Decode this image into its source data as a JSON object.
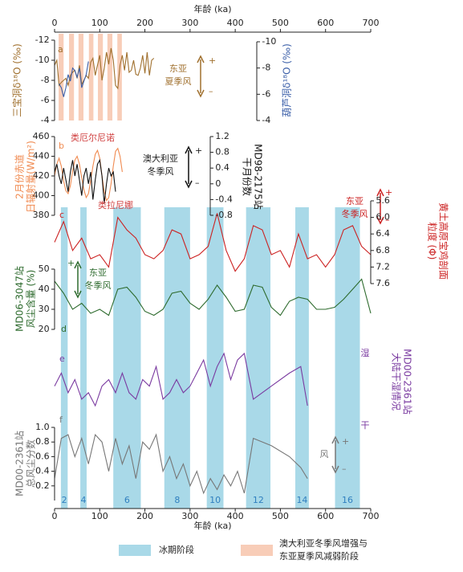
{
  "chart_data": {
    "type": "line",
    "xlabel": "年龄 (ka)",
    "xlim": [
      0,
      700
    ],
    "xticks": [
      0,
      100,
      200,
      300,
      400,
      500,
      600,
      700
    ],
    "bands": {
      "glacial": {
        "name": "冰期阶段",
        "color": "#a9d9e8",
        "ranges": [
          [
            14,
            29
          ],
          [
            57,
            71
          ],
          [
            130,
            191
          ],
          [
            243,
            300
          ],
          [
            337,
            374
          ],
          [
            424,
            478
          ],
          [
            533,
            563
          ],
          [
            621,
            676
          ]
        ],
        "labels": [
          "2",
          "4",
          "6",
          "8",
          "10",
          "12",
          "14",
          "16"
        ]
      },
      "weak": {
        "name": [
          "澳大利亚冬季风增强与",
          "东亚夏季风减弱阶段"
        ],
        "color": "#f8cdb8",
        "ranges": [
          [
            9,
            20
          ],
          [
            32,
            43
          ],
          [
            53,
            64
          ],
          [
            76,
            86
          ],
          [
            96,
            107
          ],
          [
            117,
            128
          ],
          [
            139,
            149
          ]
        ]
      }
    },
    "annotations": [
      "东亚",
      "夏季风",
      "+",
      "–",
      "类厄尔尼诺",
      "类拉尼娜",
      "澳大利亚",
      "冬季风",
      "+",
      "–",
      "东亚",
      "冬季风",
      "+",
      "–",
      "东亚",
      "冬季风",
      "+",
      "湿",
      "干",
      "风",
      "+",
      "–"
    ],
    "series": [
      {
        "letter": "a",
        "label": [
          "三宝洞δ¹⁸O (‰)"
        ],
        "color": "#a0702e",
        "inverted": true,
        "ylim": [
          -12,
          -4
        ],
        "yticks": [
          -12,
          -10,
          -8,
          -6,
          -4
        ],
        "x": [
          0,
          5,
          10,
          15,
          20,
          25,
          30,
          35,
          40,
          45,
          50,
          55,
          60,
          65,
          70,
          75,
          80,
          85,
          90,
          95,
          100,
          105,
          110,
          115,
          120,
          125,
          130,
          135,
          140,
          145,
          150,
          155,
          160,
          165,
          170,
          175,
          180,
          185,
          190,
          195,
          200,
          205,
          210,
          215,
          220
        ],
        "values": [
          -9.5,
          -10,
          -7.5,
          -7.8,
          -8,
          -8.2,
          -7.5,
          -8.5,
          -8.8,
          -9,
          -8.2,
          -9.5,
          -7.6,
          -8,
          -8.5,
          -8.2,
          -9.8,
          -10.2,
          -8.5,
          -9.5,
          -10.5,
          -8,
          -9.2,
          -10.8,
          -9.6,
          -11.2,
          -10,
          -7.5,
          -7.2,
          -9.5,
          -10.5,
          -9,
          -10.8,
          -8.8,
          -9,
          -10,
          -8.6,
          -8.5,
          -9.2,
          -10.5,
          -8.7,
          -10.8,
          -8.5,
          -10,
          -10.2
        ]
      },
      {
        "label": [
          "葫芦洞δ¹⁸O (‰)"
        ],
        "color": "#3a5ea8",
        "inverted": true,
        "ylim": [
          -10,
          -4
        ],
        "yticks": [
          -10,
          -8,
          -6,
          -4
        ],
        "x": [
          10,
          15,
          20,
          25,
          30,
          35,
          40,
          45,
          50,
          55,
          60,
          65,
          70,
          75
        ],
        "values": [
          -6.8,
          -6.5,
          -5.8,
          -6.5,
          -7.5,
          -7,
          -8,
          -7.8,
          -7.3,
          -8,
          -6.5,
          -7,
          -7.5,
          -8.5
        ]
      },
      {
        "letter": "b",
        "label": [
          "2月份赤道",
          "日辐射量(W/m²)"
        ],
        "color": "#f08a50",
        "inverted": false,
        "ylim": [
          380,
          460
        ],
        "yticks": [
          380,
          400,
          420,
          440,
          460
        ],
        "x": [
          0,
          5,
          10,
          15,
          20,
          25,
          30,
          35,
          40,
          45,
          50,
          55,
          60,
          65,
          70,
          75,
          80,
          85,
          90,
          95,
          100,
          105,
          110,
          115,
          120,
          125,
          130,
          135,
          140,
          145,
          150
        ],
        "values": [
          420,
          432,
          438,
          430,
          415,
          405,
          402,
          410,
          425,
          436,
          440,
          432,
          418,
          406,
          398,
          402,
          415,
          430,
          442,
          446,
          438,
          420,
          404,
          395,
          398,
          412,
          430,
          445,
          448,
          440,
          424
        ]
      },
      {
        "label": [
          "MD98-2175站",
          "干月份数"
        ],
        "color": "#111111",
        "inverted": false,
        "ylim": [
          -0.8,
          1.2
        ],
        "yticks": [
          -0.8,
          -0.4,
          0,
          0.4,
          0.8,
          1.2
        ],
        "x": [
          0,
          5,
          10,
          15,
          20,
          25,
          30,
          35,
          40,
          45,
          50,
          55,
          60,
          65,
          70,
          75,
          80,
          85,
          90,
          95,
          100,
          105,
          110,
          115,
          120,
          125,
          130,
          135
        ],
        "values": [
          0.3,
          0.5,
          0.2,
          0,
          0.4,
          0.1,
          -0.2,
          0.3,
          0.6,
          0.2,
          0.5,
          0.1,
          -0.3,
          0.2,
          0.4,
          0,
          0.3,
          -0.4,
          0.1,
          0.5,
          0.6,
          0.2,
          -0.5,
          0,
          0.4,
          0.2,
          0.3,
          -0.2
        ]
      },
      {
        "letter": "c",
        "label": [
          "黄土高原宝鸡剖面",
          "粒度 (Φ)"
        ],
        "color": "#cc2222",
        "inverted": true,
        "ylim": [
          5.6,
          7.6
        ],
        "yticks": [
          5.6,
          {
            "value": 6,
            "label": "6.0"
          },
          6.4,
          6.8,
          7.2,
          7.6
        ],
        "x": [
          0,
          20,
          40,
          60,
          80,
          100,
          120,
          140,
          160,
          180,
          200,
          220,
          240,
          260,
          280,
          300,
          320,
          340,
          360,
          380,
          400,
          420,
          440,
          460,
          480,
          500,
          520,
          540,
          560,
          580,
          600,
          620,
          640,
          660,
          680,
          700
        ],
        "values": [
          6.6,
          6.1,
          6.8,
          6.5,
          7.0,
          6.9,
          7.2,
          6.0,
          6.3,
          6.5,
          6.9,
          7.0,
          6.8,
          6.3,
          6.4,
          7.0,
          6.9,
          6.7,
          5.9,
          6.8,
          7.3,
          7.0,
          6.2,
          6.3,
          6.9,
          6.8,
          7.2,
          6.4,
          7.0,
          6.9,
          7.2,
          6.9,
          6.3,
          6.2,
          6.7,
          6.9
        ]
      },
      {
        "letter": "d",
        "label": [
          "MD06-3047站",
          "风尘含量 (%)"
        ],
        "color": "#2e6b2e",
        "inverted": false,
        "ylim": [
          20,
          50
        ],
        "yticks": [
          20,
          30,
          40,
          50
        ],
        "x": [
          0,
          20,
          40,
          60,
          80,
          100,
          120,
          140,
          160,
          180,
          200,
          220,
          240,
          260,
          280,
          300,
          320,
          340,
          360,
          380,
          400,
          420,
          440,
          460,
          480,
          500,
          520,
          540,
          560,
          580,
          600,
          620,
          640,
          660,
          680,
          700
        ],
        "values": [
          44,
          38,
          30,
          33,
          28,
          30,
          27,
          40,
          41,
          36,
          29,
          27,
          30,
          38,
          39,
          33,
          30,
          35,
          42,
          36,
          29,
          30,
          42,
          41,
          31,
          27,
          34,
          36,
          35,
          30,
          30,
          31,
          35,
          40,
          45,
          28
        ]
      },
      {
        "letter": "e",
        "label": [
          "MD00-2361站",
          "大陆干湿情况"
        ],
        "color": "#7a3aa0",
        "inverted": false,
        "x": [
          0,
          15,
          30,
          45,
          60,
          75,
          90,
          105,
          120,
          135,
          150,
          165,
          180,
          195,
          210,
          225,
          240,
          255,
          270,
          285,
          300,
          315,
          330,
          345,
          360,
          375,
          390,
          405,
          420,
          440,
          480,
          520,
          545,
          560
        ],
        "values": [
          0.4,
          0.6,
          0.3,
          0.5,
          0.2,
          0.3,
          0.1,
          0.4,
          0.5,
          0.3,
          0.6,
          0.3,
          0.2,
          0.5,
          0.4,
          0.7,
          0.2,
          0.3,
          0.5,
          0.3,
          0.4,
          0.6,
          0.8,
          0.4,
          0.7,
          0.9,
          0.5,
          0.8,
          0.9,
          0.2,
          0.4,
          0.6,
          0.7,
          0.1
        ]
      },
      {
        "letter": "f",
        "label": [
          "MD00-2361站",
          "总风尘分数"
        ],
        "color": "#777777",
        "inverted": false,
        "ylim": [
          0,
          1
        ],
        "yticks": [
          0.2,
          0.4,
          0.6,
          0.8,
          {
            "value": 1,
            "label": "1.0"
          }
        ],
        "x": [
          0,
          15,
          30,
          45,
          60,
          75,
          90,
          105,
          120,
          135,
          150,
          165,
          180,
          195,
          210,
          225,
          240,
          255,
          270,
          285,
          300,
          315,
          330,
          345,
          360,
          375,
          390,
          405,
          420,
          440,
          480,
          520,
          545,
          560
        ],
        "values": [
          0.3,
          0.85,
          0.9,
          0.6,
          0.85,
          0.5,
          0.9,
          0.8,
          0.4,
          0.85,
          0.5,
          0.75,
          0.3,
          0.8,
          0.7,
          0.9,
          0.4,
          0.6,
          0.3,
          0.5,
          0.2,
          0.4,
          0.1,
          0.3,
          0.15,
          0.35,
          0.2,
          0.4,
          0.1,
          0.85,
          0.75,
          0.6,
          0.45,
          0.3
        ]
      }
    ]
  }
}
